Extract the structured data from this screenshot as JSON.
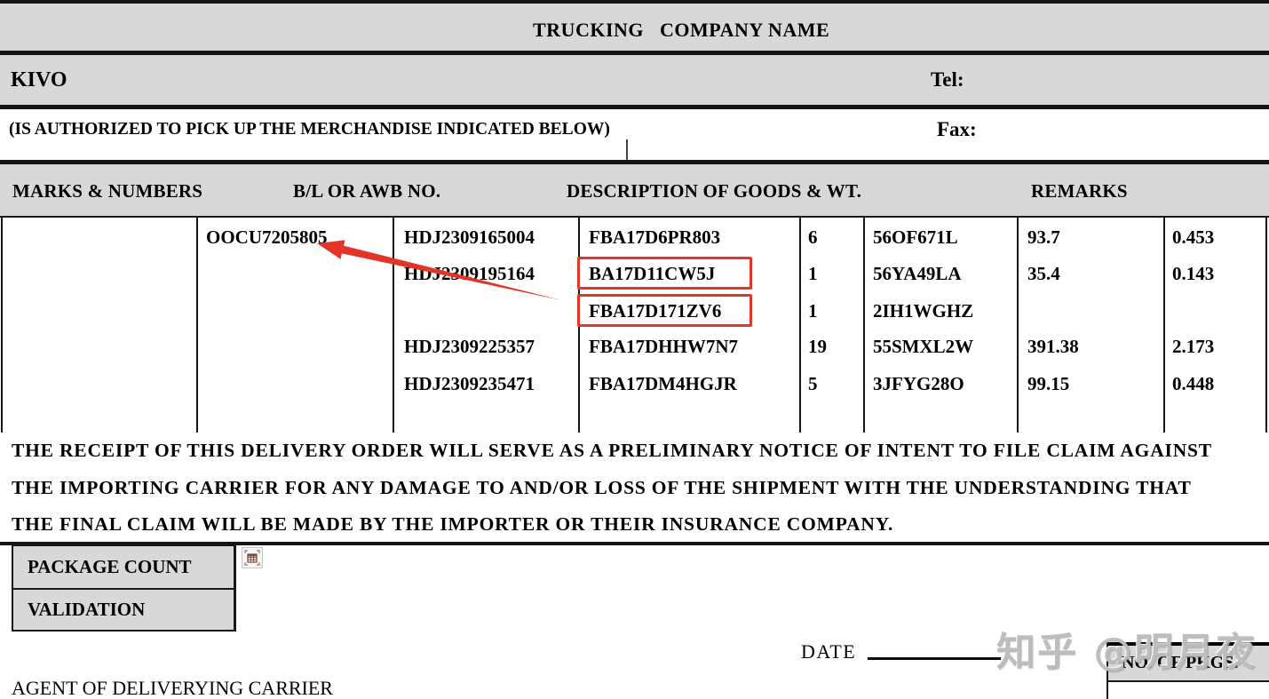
{
  "document": {
    "title": "TRUCKING   COMPANY NAME",
    "company_name": "KIVO",
    "tel_label": "Tel:",
    "fax_label": "Fax:",
    "authorization_note": "(IS AUTHORIZED TO PICK UP THE MERCHANDISE INDICATED BELOW)"
  },
  "cargo_table": {
    "headers": [
      "MARKS & NUMBERS",
      "B/L OR AWB NO.",
      "DESCRIPTION OF GOODS & WT.",
      "REMARKS"
    ],
    "rows": [
      {
        "container_no": "OOCU7205805",
        "bl_awb_no": "HDJ2309165004",
        "shipment_id": "FBA17D6PR803",
        "pkg_qty": "6",
        "ref_code": "56OF671L",
        "weight": "93.7",
        "volume": "0.453",
        "red_boxed": false
      },
      {
        "container_no": "",
        "bl_awb_no": "HDJ2309195164",
        "shipment_id": "BA17D11CW5J",
        "pkg_qty": "1",
        "ref_code": "56YA49LA",
        "weight": "35.4",
        "volume": "0.143",
        "red_boxed": true
      },
      {
        "container_no": "",
        "bl_awb_no": "",
        "shipment_id": "FBA17D171ZV6",
        "pkg_qty": "1",
        "ref_code": "2IH1WGHZ",
        "weight": "",
        "volume": "",
        "red_boxed": true
      },
      {
        "container_no": "",
        "bl_awb_no": "HDJ2309225357",
        "shipment_id": "FBA17DHHW7N7",
        "pkg_qty": "19",
        "ref_code": "55SMXL2W",
        "weight": "391.38",
        "volume": "2.173",
        "red_boxed": false
      },
      {
        "container_no": "",
        "bl_awb_no": "HDJ2309235471",
        "shipment_id": "FBA17DM4HGJR",
        "pkg_qty": "5",
        "ref_code": "3JFYG28O",
        "weight": "99.15",
        "volume": "0.448",
        "red_boxed": false
      }
    ]
  },
  "disclaimer": {
    "line1": "THE RECEIPT OF THIS DELIVERY ORDER WILL SERVE AS A PRELIMINARY NOTICE OF INTENT TO FILE CLAIM AGAINST",
    "line2": "THE IMPORTING CARRIER FOR ANY DAMAGE TO AND/OR LOSS OF THE SHIPMENT WITH THE UNDERSTANDING THAT",
    "line3": "THE FINAL CLAIM WILL BE MADE BY THE IMPORTER OR THEIR INSURANCE COMPANY."
  },
  "footer": {
    "package_count_label": "PACKAGE COUNT",
    "validation_label": "VALIDATION",
    "agent_label": "AGENT OF DELIVERYING CARRIER",
    "date_label": "DATE",
    "no_of_pkgs_label": "NO. OF PKGS."
  },
  "annotations": {
    "highlight_color": "#e0372b",
    "arrow_points_to": "OOCU7205805",
    "red_boxed_values": [
      "BA17D11CW5J",
      "FBA17D171ZV6"
    ]
  },
  "watermark": {
    "text": "知乎 @明月夜"
  },
  "icons": {
    "table_selector": "table-selector-icon"
  }
}
